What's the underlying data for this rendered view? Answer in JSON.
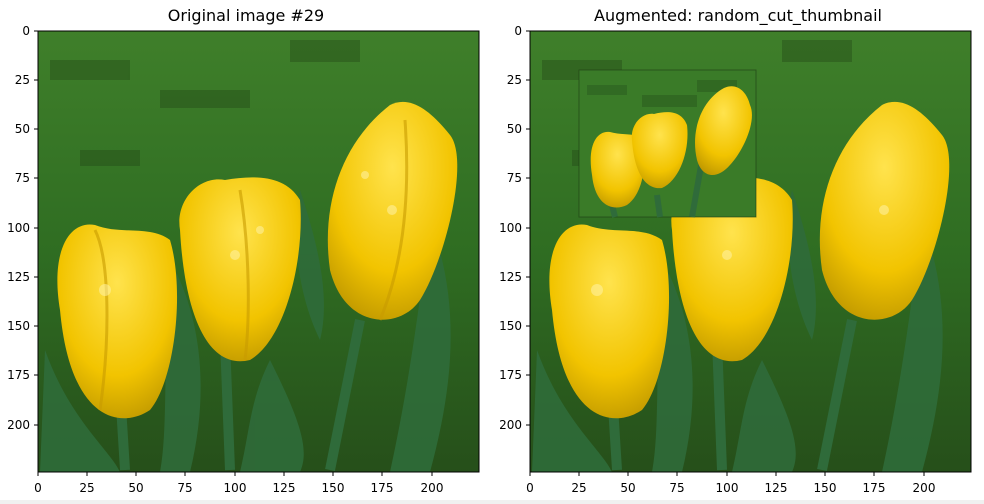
{
  "panels": [
    {
      "title": "Original image #29",
      "x_ticks": [
        "0",
        "25",
        "50",
        "75",
        "100",
        "125",
        "150",
        "175",
        "200"
      ],
      "y_ticks": [
        "0",
        "25",
        "50",
        "75",
        "100",
        "125",
        "150",
        "175",
        "200"
      ]
    },
    {
      "title": "Augmented: random_cut_thumbnail",
      "x_ticks": [
        "0",
        "25",
        "50",
        "75",
        "100",
        "125",
        "150",
        "175",
        "200"
      ],
      "y_ticks": [
        "0",
        "25",
        "50",
        "75",
        "100",
        "125",
        "150",
        "175",
        "200"
      ]
    }
  ],
  "scene": {
    "grass_dark": "#2c5d1f",
    "grass_light": "#4a8b32",
    "tulip_yellow": "#f2c400",
    "tulip_shadow": "#b58f00",
    "tulip_highlight": "#ffe34d",
    "leaf_green": "#2f6b3a"
  }
}
